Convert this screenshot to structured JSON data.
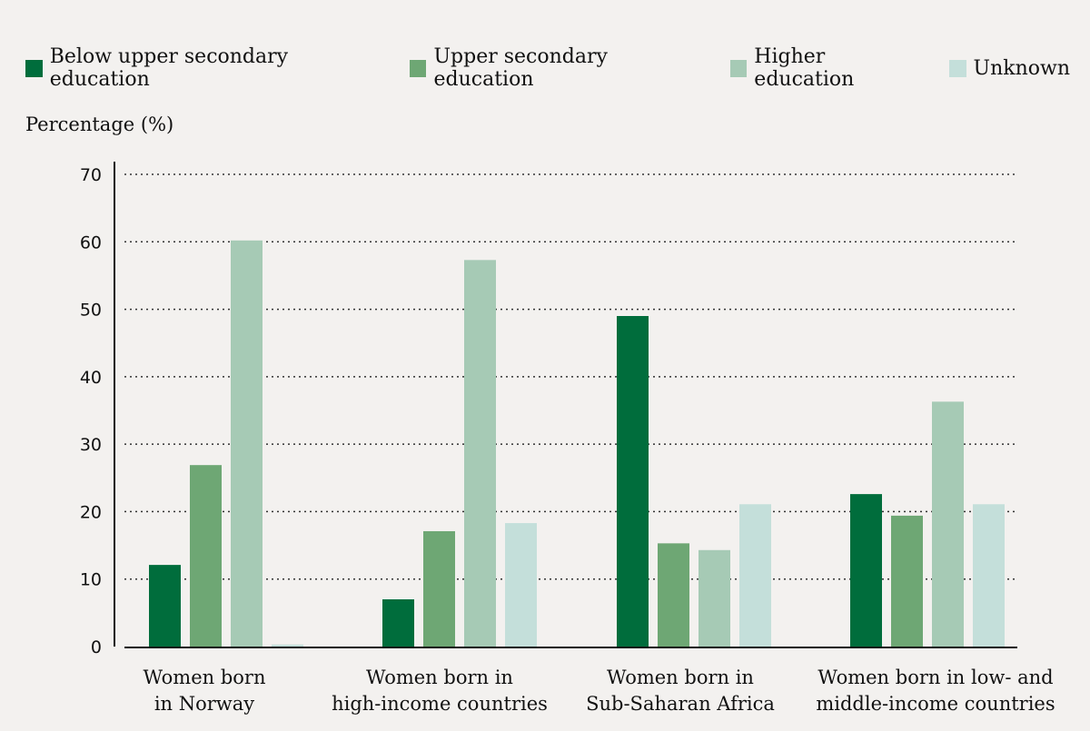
{
  "chart_data": {
    "type": "bar",
    "ylabel": "Percentage (%)",
    "ylim": [
      0,
      70
    ],
    "yticks": [
      0,
      10,
      20,
      30,
      40,
      50,
      60,
      70
    ],
    "grid": true,
    "legend_position": "top",
    "categories": [
      [
        "Women born",
        "in Norway"
      ],
      [
        "Women born in",
        "high-income countries"
      ],
      [
        "Women born in",
        "Sub-Saharan Africa"
      ],
      [
        "Women born in low- and",
        "middle-income countries"
      ]
    ],
    "series": [
      {
        "name": "Below upper secondary education",
        "color": "#006d3c",
        "values": [
          12.1,
          7.0,
          49.0,
          22.6
        ]
      },
      {
        "name": "Upper secondary education",
        "color": "#6ea774",
        "values": [
          26.9,
          17.1,
          15.3,
          19.4
        ]
      },
      {
        "name": "Higher education",
        "color": "#a6cab5",
        "values": [
          60.2,
          57.3,
          14.3,
          36.3
        ]
      },
      {
        "name": "Unknown",
        "color": "#c4dfda",
        "values": [
          0.3,
          18.3,
          21.1,
          21.1
        ]
      }
    ]
  }
}
